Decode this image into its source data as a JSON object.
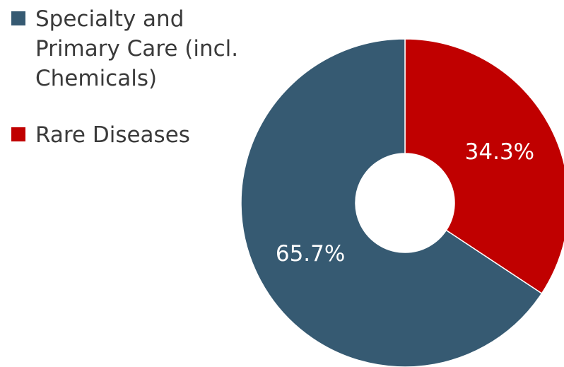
{
  "chart_data": {
    "type": "pie",
    "variant": "donut",
    "series": [
      {
        "name": "Specialty and Primary Care (incl. Chemicals)",
        "value": 65.7,
        "label": "65.7%",
        "color": "#365a72"
      },
      {
        "name": "Rare Diseases",
        "value": 34.3,
        "label": "34.3%",
        "color": "#c00000"
      }
    ],
    "legend": {
      "position": "left",
      "order": [
        "Specialty and Primary Care (incl. Chemicals)",
        "Rare Diseases"
      ]
    },
    "title": "",
    "start_angle": "12 o'clock",
    "direction": "clockwise",
    "slice_order": [
      "Rare Diseases",
      "Specialty and Primary Care (incl. Chemicals)"
    ]
  }
}
